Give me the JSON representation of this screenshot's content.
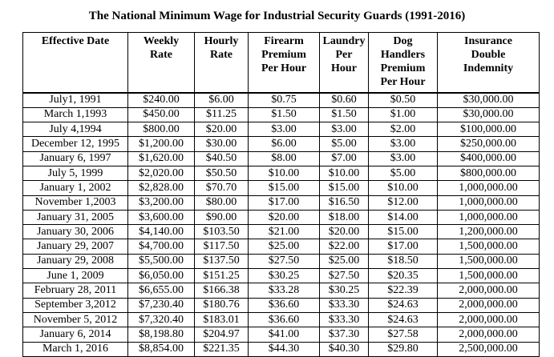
{
  "document": {
    "title": "The National Minimum Wage for Industrial Security Guards (1991-2016)"
  },
  "table": {
    "headers": [
      [
        "Effective Date"
      ],
      [
        "Weekly",
        "Rate"
      ],
      [
        "Hourly",
        "Rate"
      ],
      [
        "Firearm",
        "Premium",
        "Per Hour"
      ],
      [
        "Laundry",
        "Per",
        "Hour"
      ],
      [
        "Dog",
        "Handlers",
        "Premium",
        "Per Hour"
      ],
      [
        "Insurance",
        "Double",
        "Indemnity"
      ]
    ],
    "rows": [
      [
        "July1, 1991",
        "$240.00",
        "$6.00",
        "$0.75",
        "$0.60",
        "$0.50",
        "$30,000.00"
      ],
      [
        "March 1,1993",
        "$450.00",
        "$11.25",
        "$1.50",
        "$1.50",
        "$1.00",
        "$30,000.00"
      ],
      [
        "July 4,1994",
        "$800.00",
        "$20.00",
        "$3.00",
        "$3.00",
        "$2.00",
        "$100,000.00"
      ],
      [
        "December 12, 1995",
        "$1,200.00",
        "$30.00",
        "$6.00",
        "$5.00",
        "$3.00",
        "$250,000.00"
      ],
      [
        "January 6, 1997",
        "$1,620.00",
        "$40.50",
        "$8.00",
        "$7.00",
        "$3.00",
        "$400,000.00"
      ],
      [
        "July 5, 1999",
        "$2,020.00",
        "$50.50",
        "$10.00",
        "$10.00",
        "$5.00",
        "$800,000.00"
      ],
      [
        "January 1, 2002",
        "$2,828.00",
        "$70.70",
        "$15.00",
        "$15.00",
        "$10.00",
        "1,000,000.00"
      ],
      [
        "November 1,2003",
        "$3,200.00",
        "$80.00",
        "$17.00",
        "$16.50",
        "$12.00",
        "1,000,000.00"
      ],
      [
        "January 31, 2005",
        "$3,600.00",
        "$90.00",
        "$20.00",
        "$18.00",
        "$14.00",
        "1,000,000.00"
      ],
      [
        "January 30, 2006",
        "$4,140.00",
        "$103.50",
        "$21.00",
        "$20.00",
        "$15.00",
        "1,200,000.00"
      ],
      [
        "January 29, 2007",
        "$4,700.00",
        "$117.50",
        "$25.00",
        "$22.00",
        "$17.00",
        "1,500,000.00"
      ],
      [
        "January 29, 2008",
        "$5,500.00",
        "$137.50",
        "$27.50",
        "$25.00",
        "$18.50",
        "1,500,000.00"
      ],
      [
        "June 1, 2009",
        "$6,050.00",
        "$151.25",
        "$30.25",
        "$27.50",
        "$20.35",
        "1,500,000.00"
      ],
      [
        "February 28, 2011",
        "$6,655.00",
        "$166.38",
        "$33.28",
        "$30.25",
        "$22.39",
        "2,000,000.00"
      ],
      [
        "September 3,2012",
        "$7,230.40",
        "$180.76",
        "$36.60",
        "$33.30",
        "$24.63",
        "2,000,000.00"
      ],
      [
        "November 5, 2012",
        "$7,320.40",
        "$183.01",
        "$36.60",
        "$33.30",
        "$24.63",
        "2,000,000.00"
      ],
      [
        "January 6, 2014",
        "$8,198.80",
        "$204.97",
        "$41.00",
        "$37.30",
        "$27.58",
        "2,000,000.00"
      ],
      [
        "March 1, 2016",
        "$8,854.00",
        "$221.35",
        "$44.30",
        "$40.30",
        "$29.80",
        "2,500,000.00"
      ]
    ]
  }
}
